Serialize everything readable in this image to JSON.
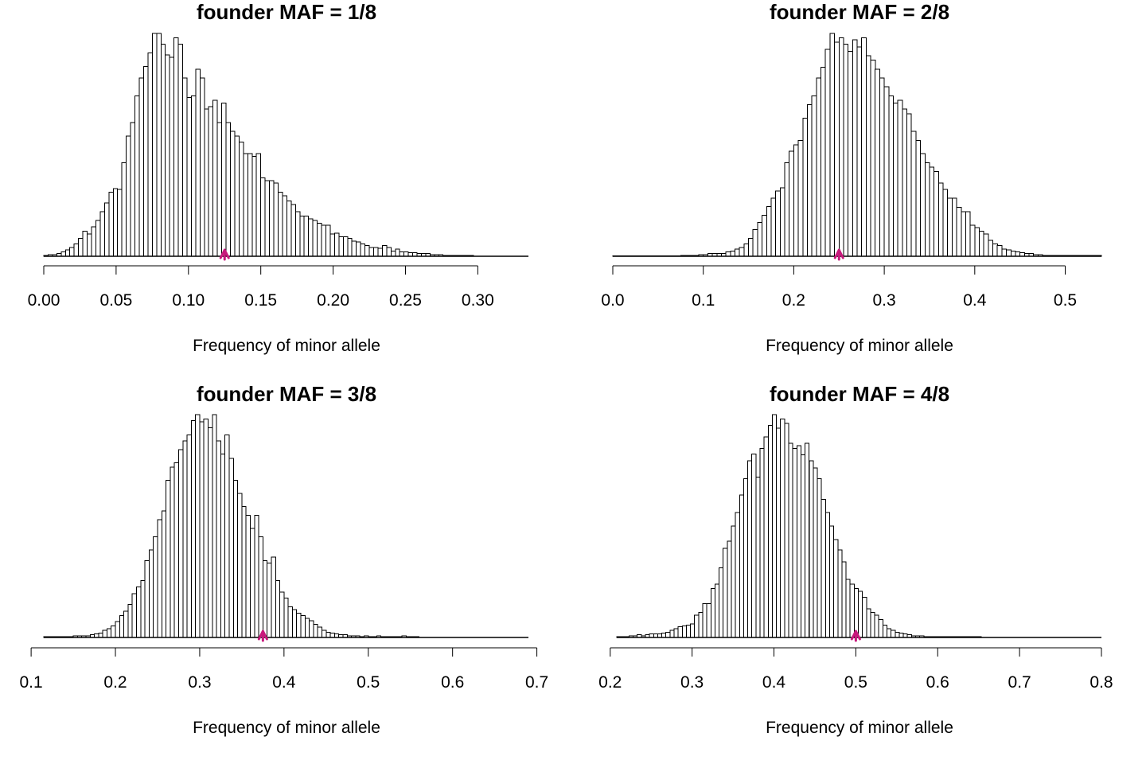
{
  "chart_data": [
    {
      "type": "bar",
      "title": "founder MAF = 1/8",
      "xlabel": "Frequency of minor allele",
      "ylabel": "",
      "xlim": [
        0.0,
        0.335
      ],
      "x_ticks": [
        0.0,
        0.05,
        0.1,
        0.15,
        0.2,
        0.25,
        0.3
      ],
      "x_tick_labels": [
        "0.00",
        "0.05",
        "0.10",
        "0.15",
        "0.20",
        "0.25",
        "0.30"
      ],
      "bins": {
        "start": 0.0,
        "width": 0.003
      },
      "values": [
        1,
        2,
        2,
        3,
        5,
        7,
        10,
        14,
        20,
        28,
        25,
        33,
        40,
        50,
        60,
        72,
        76,
        75,
        105,
        135,
        150,
        180,
        200,
        213,
        228,
        250,
        250,
        238,
        226,
        223,
        245,
        238,
        200,
        178,
        180,
        210,
        200,
        165,
        168,
        175,
        150,
        172,
        150,
        140,
        135,
        128,
        115,
        115,
        112,
        115,
        88,
        85,
        85,
        82,
        72,
        68,
        62,
        58,
        50,
        45,
        45,
        42,
        40,
        37,
        35,
        35,
        25,
        26,
        22,
        22,
        20,
        17,
        16,
        14,
        12,
        10,
        10,
        9,
        12,
        10,
        6,
        8,
        5,
        5,
        4,
        4,
        3,
        3,
        3,
        2,
        2,
        2,
        1,
        1,
        1,
        1,
        1,
        1,
        1
      ],
      "founder_marker": 0.125,
      "grid": false
    },
    {
      "type": "bar",
      "title": "founder MAF = 2/8",
      "xlabel": "Frequency of minor allele",
      "ylabel": "",
      "xlim": [
        0.0,
        0.54
      ],
      "x_ticks": [
        0.0,
        0.1,
        0.2,
        0.3,
        0.4,
        0.5
      ],
      "x_tick_labels": [
        "0.0",
        "0.1",
        "0.2",
        "0.3",
        "0.4",
        "0.5"
      ],
      "bins": {
        "start": 0.0,
        "width": 0.005
      },
      "values": [
        0,
        0,
        0,
        0,
        0,
        0,
        0,
        0,
        0,
        0,
        0,
        0,
        0,
        0,
        0,
        1,
        1,
        1,
        1,
        2,
        2,
        3,
        3,
        3,
        3,
        5,
        6,
        8,
        10,
        14,
        20,
        30,
        38,
        46,
        56,
        65,
        73,
        77,
        105,
        118,
        125,
        130,
        155,
        170,
        180,
        200,
        212,
        232,
        250,
        240,
        245,
        238,
        230,
        243,
        235,
        245,
        225,
        220,
        210,
        200,
        190,
        180,
        172,
        175,
        165,
        160,
        140,
        130,
        115,
        105,
        100,
        95,
        82,
        75,
        65,
        65,
        55,
        50,
        50,
        35,
        32,
        28,
        25,
        18,
        14,
        12,
        8,
        7,
        6,
        5,
        4,
        3,
        3,
        2,
        2,
        1,
        1,
        1,
        1,
        1,
        1,
        1,
        1,
        1,
        1,
        1,
        1,
        1
      ],
      "founder_marker": 0.25,
      "grid": false
    },
    {
      "type": "bar",
      "title": "founder MAF = 3/8",
      "xlabel": "Frequency of minor allele",
      "ylabel": "",
      "xlim": [
        0.115,
        0.69
      ],
      "x_ticks": [
        0.1,
        0.2,
        0.3,
        0.4,
        0.5,
        0.6,
        0.7
      ],
      "x_tick_labels": [
        "0.1",
        "0.2",
        "0.3",
        "0.4",
        "0.5",
        "0.6",
        "0.7"
      ],
      "bins": {
        "start": 0.115,
        "width": 0.005
      },
      "values": [
        1,
        1,
        1,
        1,
        1,
        1,
        1,
        2,
        2,
        2,
        2,
        3,
        4,
        5,
        8,
        10,
        13,
        18,
        25,
        30,
        38,
        50,
        58,
        65,
        88,
        100,
        115,
        135,
        145,
        180,
        195,
        200,
        215,
        225,
        232,
        248,
        255,
        247,
        250,
        240,
        255,
        225,
        210,
        232,
        205,
        180,
        165,
        150,
        140,
        125,
        140,
        115,
        88,
        85,
        92,
        65,
        52,
        45,
        35,
        32,
        28,
        25,
        22,
        19,
        15,
        12,
        8,
        6,
        5,
        4,
        3,
        3,
        2,
        2,
        2,
        1,
        2,
        1,
        1,
        2,
        1,
        1,
        1,
        1,
        1,
        2,
        1,
        1,
        1
      ],
      "founder_marker": 0.375,
      "grid": false
    },
    {
      "type": "bar",
      "title": "founder MAF = 4/8",
      "xlabel": "Frequency of minor allele",
      "ylabel": "",
      "xlim": [
        0.208,
        0.8
      ],
      "x_ticks": [
        0.2,
        0.3,
        0.4,
        0.5,
        0.6,
        0.7,
        0.8
      ],
      "x_tick_labels": [
        "0.2",
        "0.3",
        "0.4",
        "0.5",
        "0.6",
        "0.7",
        "0.8"
      ],
      "bins": {
        "start": 0.208,
        "width": 0.005
      },
      "values": [
        1,
        1,
        1,
        2,
        2,
        3,
        2,
        3,
        4,
        4,
        4,
        5,
        6,
        8,
        10,
        12,
        13,
        14,
        15,
        25,
        28,
        38,
        38,
        55,
        60,
        78,
        100,
        108,
        125,
        140,
        160,
        178,
        198,
        206,
        180,
        212,
        225,
        238,
        250,
        235,
        245,
        240,
        218,
        212,
        215,
        205,
        218,
        198,
        190,
        178,
        155,
        140,
        125,
        110,
        98,
        85,
        65,
        60,
        55,
        52,
        45,
        32,
        28,
        25,
        20,
        14,
        10,
        8,
        6,
        5,
        4,
        3,
        2,
        2,
        2,
        1,
        1,
        1,
        1,
        1,
        1,
        1,
        1,
        1,
        1,
        1,
        1,
        1,
        1
      ],
      "founder_marker": 0.5,
      "grid": false
    }
  ]
}
